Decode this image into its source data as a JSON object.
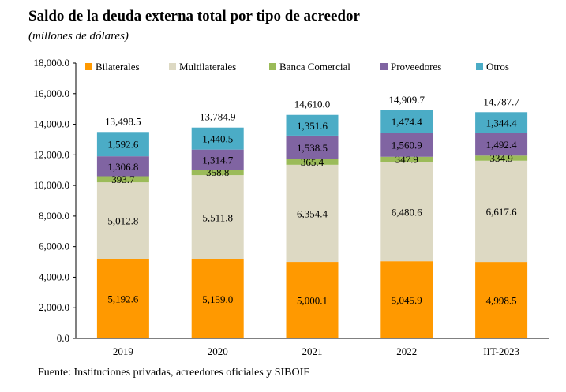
{
  "chart_data": {
    "type": "bar",
    "stacked": true,
    "title": "Saldo de la deuda externa total por tipo de acreedor",
    "subtitle": "(millones de dólares)",
    "source": "Fuente: Instituciones privadas, acreedores oficiales y SIBOIF",
    "categories": [
      "2019",
      "2020",
      "2021",
      "2022",
      "IIT-2023"
    ],
    "ylim": [
      0,
      18000
    ],
    "yticks": [
      0,
      2000,
      4000,
      6000,
      8000,
      10000,
      12000,
      14000,
      16000,
      18000
    ],
    "ytick_labels": [
      "0.0",
      "2,000.0",
      "4,000.0",
      "6,000.0",
      "8,000.0",
      "10,000.0",
      "12,000.0",
      "14,000.0",
      "16,000.0",
      "18,000.0"
    ],
    "legend_position": "top",
    "series": [
      {
        "name": "Bilaterales",
        "color": "#ff9900",
        "values": [
          5192.6,
          5159.0,
          5000.1,
          5045.9,
          4998.5
        ],
        "labels": [
          "5,192.6",
          "5,159.0",
          "5,000.1",
          "5,045.9",
          "4,998.5"
        ]
      },
      {
        "name": "Multilaterales",
        "color": "#ddd9c3",
        "values": [
          5012.8,
          5511.8,
          6354.4,
          6480.6,
          6617.6
        ],
        "labels": [
          "5,012.8",
          "5,511.8",
          "6,354.4",
          "6,480.6",
          "6,617.6"
        ]
      },
      {
        "name": "Banca Comercial",
        "color": "#9bbb59",
        "values": [
          393.7,
          358.8,
          365.4,
          347.9,
          334.9
        ],
        "labels": [
          "393.7",
          "358.8",
          "365.4",
          "347.9",
          "334.9"
        ]
      },
      {
        "name": "Proveedores",
        "color": "#8064a2",
        "values": [
          1306.8,
          1314.7,
          1538.5,
          1560.9,
          1492.4
        ],
        "labels": [
          "1,306.8",
          "1,314.7",
          "1,538.5",
          "1,560.9",
          "1,492.4"
        ]
      },
      {
        "name": "Otros",
        "color": "#4bacc6",
        "values": [
          1592.6,
          1440.5,
          1351.6,
          1474.4,
          1344.4
        ],
        "labels": [
          "1,592.6",
          "1,440.5",
          "1,351.6",
          "1,474.4",
          "1,344.4"
        ]
      }
    ],
    "totals": [
      13498.5,
      13784.9,
      14610.0,
      14909.7,
      14787.7
    ],
    "total_labels": [
      "13,498.5",
      "13,784.9",
      "14,610.0",
      "14,909.7",
      "14,787.7"
    ]
  }
}
